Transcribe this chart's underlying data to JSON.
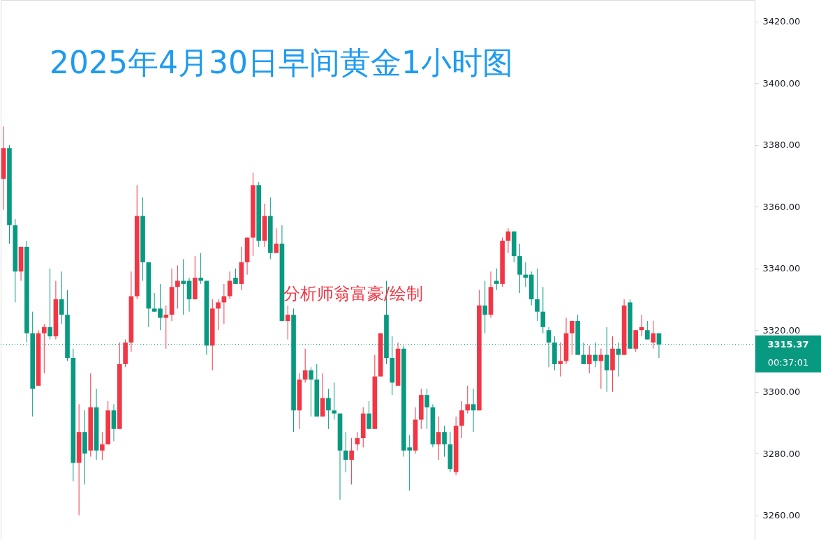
{
  "chart_data": {
    "type": "candlestick",
    "title": "2025年4月30日早间黄金1小时图",
    "categories": [
      null,
      null,
      null,
      null,
      null,
      null,
      null,
      null,
      null,
      null,
      null,
      null,
      null,
      null,
      null,
      null,
      null,
      null,
      null,
      null,
      null,
      null,
      null,
      null,
      null,
      null,
      null,
      null,
      null,
      null,
      null,
      null,
      null,
      null,
      null,
      null,
      null,
      null,
      null,
      null,
      null,
      null,
      null,
      null,
      null,
      null,
      null,
      null,
      null,
      null,
      null,
      null,
      null,
      null,
      null,
      null,
      null,
      null,
      null,
      null,
      null,
      null,
      null,
      null,
      null,
      null,
      null,
      null,
      null,
      null,
      null,
      null,
      null,
      null,
      null,
      null,
      null,
      null,
      null,
      null,
      null,
      null,
      null,
      null,
      null,
      null,
      null,
      null,
      null,
      null,
      null,
      null,
      null,
      null,
      null,
      null,
      null,
      null,
      null,
      null,
      null,
      null,
      null,
      null,
      null,
      null,
      null,
      null,
      null,
      null,
      null,
      null,
      null,
      null,
      null,
      null,
      null,
      null,
      null,
      null,
      null,
      null,
      null,
      null,
      null,
      null,
      null,
      null,
      null,
      null
    ],
    "ohlc": [
      [
        3369,
        3386,
        3359,
        3379
      ],
      [
        3379,
        3380,
        3348,
        3354
      ],
      [
        3354,
        3356,
        3329,
        3339
      ],
      [
        3339,
        3347,
        3336,
        3347
      ],
      [
        3347,
        3349,
        3316,
        3319
      ],
      [
        3319,
        3326,
        3292,
        3301
      ],
      [
        3302,
        3320,
        3302,
        3319
      ],
      [
        3319,
        3322,
        3306,
        3321
      ],
      [
        3321,
        3340,
        3317,
        3318
      ],
      [
        3318,
        3336,
        3317,
        3330
      ],
      [
        3330,
        3339,
        3322,
        3325
      ],
      [
        3325,
        3333,
        3310,
        3311
      ],
      [
        3311,
        3314,
        3271,
        3277
      ],
      [
        3277,
        3296,
        3260,
        3287
      ],
      [
        3287,
        3294,
        3270,
        3280
      ],
      [
        3281,
        3306,
        3279,
        3295
      ],
      [
        3295,
        3301,
        3278,
        3281
      ],
      [
        3281,
        3287,
        3278,
        3283
      ],
      [
        3283,
        3297,
        3283,
        3294
      ],
      [
        3294,
        3296,
        3284,
        3288
      ],
      [
        3288,
        3316,
        3288,
        3309
      ],
      [
        3309,
        3317,
        3308,
        3316
      ],
      [
        3316,
        3339,
        3313,
        3331
      ],
      [
        3331,
        3367,
        3330,
        3357
      ],
      [
        3357,
        3363,
        3336,
        3342
      ],
      [
        3342,
        3342,
        3321,
        3327
      ],
      [
        3327,
        3332,
        3326,
        3326
      ],
      [
        3327,
        3335,
        3320,
        3324
      ],
      [
        3324,
        3328,
        3314,
        3325
      ],
      [
        3325,
        3340,
        3323,
        3334
      ],
      [
        3334,
        3341,
        3327,
        3336
      ],
      [
        3336,
        3343,
        3325,
        3335
      ],
      [
        3336,
        3337,
        3326,
        3330
      ],
      [
        3330,
        3344,
        3330,
        3337
      ],
      [
        3337,
        3345,
        3335,
        3336
      ],
      [
        3336,
        3336,
        3312,
        3315
      ],
      [
        3315,
        3330,
        3307,
        3327
      ],
      [
        3327,
        3330,
        3320,
        3329
      ],
      [
        3329,
        3335,
        3322,
        3331
      ],
      [
        3331,
        3339,
        3330,
        3336
      ],
      [
        3337,
        3340,
        3335,
        3335
      ],
      [
        3335,
        3347,
        3333,
        3342
      ],
      [
        3342,
        3350,
        3338,
        3350
      ],
      [
        3350,
        3371,
        3344,
        3367
      ],
      [
        3367,
        3368,
        3347,
        3349
      ],
      [
        3349,
        3361,
        3347,
        3357
      ],
      [
        3357,
        3363,
        3343,
        3345
      ],
      [
        3345,
        3353,
        3345,
        3348
      ],
      [
        3348,
        3354,
        3323,
        3323
      ],
      [
        3323,
        3328,
        3317,
        3325
      ],
      [
        3325,
        3327,
        3287,
        3294
      ],
      [
        3294,
        3306,
        3288,
        3304
      ],
      [
        3304,
        3314,
        3303,
        3307
      ],
      [
        3307,
        3308,
        3292,
        3304
      ],
      [
        3304,
        3309,
        3292,
        3292
      ],
      [
        3292,
        3306,
        3292,
        3298
      ],
      [
        3298,
        3301,
        3288,
        3294
      ],
      [
        3294,
        3303,
        3291,
        3293
      ],
      [
        3293,
        3293,
        3265,
        3281
      ],
      [
        3281,
        3287,
        3274,
        3278
      ],
      [
        3278,
        3285,
        3270,
        3281
      ],
      [
        3283,
        3287,
        3281,
        3285
      ],
      [
        3285,
        3295,
        3282,
        3293
      ],
      [
        3293,
        3297,
        3288,
        3288
      ],
      [
        3288,
        3312,
        3288,
        3305
      ],
      [
        3305,
        3319,
        3305,
        3319
      ],
      [
        3325,
        3336,
        3309,
        3311
      ],
      [
        3311,
        3318,
        3299,
        3303
      ],
      [
        3302,
        3316,
        3302,
        3314
      ],
      [
        3314,
        3315,
        3279,
        3281
      ],
      [
        3282,
        3286,
        3268,
        3281
      ],
      [
        3281,
        3295,
        3280,
        3291
      ],
      [
        3291,
        3301,
        3288,
        3299
      ],
      [
        3299,
        3301,
        3288,
        3295
      ],
      [
        3295,
        3296,
        3282,
        3283
      ],
      [
        3283,
        3292,
        3278,
        3287
      ],
      [
        3287,
        3289,
        3279,
        3283
      ],
      [
        3283,
        3287,
        3274,
        3275
      ],
      [
        3274,
        3292,
        3273,
        3289
      ],
      [
        3289,
        3297,
        3285,
        3294
      ],
      [
        3294,
        3302,
        3293,
        3296
      ],
      [
        3296,
        3301,
        3287,
        3294
      ],
      [
        3294,
        3333,
        3294,
        3328
      ],
      [
        3328,
        3336,
        3319,
        3325
      ],
      [
        3325,
        3339,
        3324,
        3334
      ],
      [
        3336,
        3340,
        3333,
        3335
      ],
      [
        3335,
        3350,
        3334,
        3349
      ],
      [
        3349,
        3353,
        3345,
        3352
      ],
      [
        3352,
        3352,
        3342,
        3344
      ],
      [
        3344,
        3348,
        3332,
        3338
      ],
      [
        3338,
        3342,
        3334,
        3337
      ],
      [
        3338,
        3339,
        3328,
        3330
      ],
      [
        3330,
        3340,
        3323,
        3326
      ],
      [
        3326,
        3334,
        3319,
        3321
      ],
      [
        3320,
        3321,
        3308,
        3316
      ],
      [
        3316,
        3318,
        3307,
        3309
      ],
      [
        3309,
        3316,
        3305,
        3310
      ],
      [
        3310,
        3324,
        3309,
        3319
      ],
      [
        3319,
        3323,
        3312,
        3323
      ],
      [
        3323,
        3325,
        3312,
        3312
      ],
      [
        3312,
        3316,
        3309,
        3309
      ],
      [
        3309,
        3315,
        3306,
        3312
      ],
      [
        3312,
        3316,
        3308,
        3310
      ],
      [
        3310,
        3314,
        3301,
        3312
      ],
      [
        3312,
        3321,
        3300,
        3307
      ],
      [
        3307,
        3318,
        3300,
        3314
      ],
      [
        3314,
        3316,
        3305,
        3312
      ],
      [
        3312,
        3330,
        3312,
        3328
      ],
      [
        3329,
        3330,
        3314,
        3314
      ],
      [
        3314,
        3320,
        3313,
        3320
      ],
      [
        3320,
        3325,
        3318,
        3321
      ],
      [
        3320,
        3323,
        3317,
        3317
      ],
      [
        3316,
        3323,
        3314,
        3319
      ],
      [
        3319,
        3319,
        3311,
        3315.37
      ],
      null,
      null,
      null,
      null,
      null,
      null,
      null,
      null,
      null,
      null,
      null,
      null,
      null,
      null,
      null,
      null
    ],
    "colors": [
      "#f23645",
      "#089981",
      "#089981",
      "#f23645",
      "#089981",
      "#089981",
      "#f23645",
      "#f23645",
      "#089981",
      "#f23645",
      "#089981",
      "#089981",
      "#089981",
      "#f23645",
      "#089981",
      "#f23645",
      "#089981",
      "#f23645",
      "#f23645",
      "#089981",
      "#f23645",
      "#f23645",
      "#f23645",
      "#f23645",
      "#089981",
      "#089981",
      "#089981",
      "#089981",
      "#f23645",
      "#f23645",
      "#f23645",
      "#089981",
      "#089981",
      "#f23645",
      "#089981",
      "#089981",
      "#f23645",
      "#f23645",
      "#f23645",
      "#f23645",
      "#089981",
      "#f23645",
      "#f23645",
      "#f23645",
      "#089981",
      "#f23645",
      "#089981",
      "#f23645",
      "#089981",
      "#f23645",
      "#089981",
      "#f23645",
      "#f23645",
      "#089981",
      "#089981",
      "#f23645",
      "#089981",
      "#089981",
      "#089981",
      "#089981",
      "#f23645",
      "#f23645",
      "#f23645",
      "#089981",
      "#f23645",
      "#f23645",
      "#089981",
      "#089981",
      "#f23645",
      "#089981",
      "#089981",
      "#f23645",
      "#f23645",
      "#089981",
      "#089981",
      "#f23645",
      "#089981",
      "#089981",
      "#f23645",
      "#f23645",
      "#f23645",
      "#089981",
      "#f23645",
      "#089981",
      "#f23645",
      "#089981",
      "#f23645",
      "#f23645",
      "#089981",
      "#089981",
      "#089981",
      "#089981",
      "#089981",
      "#089981",
      "#089981",
      "#089981",
      "#f23645",
      "#f23645",
      "#f23645",
      "#089981",
      "#089981",
      "#f23645",
      "#089981",
      "#f23645",
      "#089981",
      "#f23645",
      "#089981",
      "#f23645",
      "#089981",
      "#f23645",
      "#f23645",
      "#089981",
      "#f23645",
      "#089981",
      null,
      null,
      null,
      null,
      null,
      null,
      null,
      null,
      null,
      null,
      null,
      null,
      null,
      null,
      null,
      null
    ],
    "ylim": [
      3252,
      3427
    ],
    "yticks": [
      {
        "value": 3260,
        "label": "3260.00"
      },
      {
        "value": 3280,
        "label": "3280.00"
      },
      {
        "value": 3300,
        "label": "3300.00"
      },
      {
        "value": 3320,
        "label": "3320.00"
      },
      {
        "value": 3340,
        "label": "3340.00"
      },
      {
        "value": 3360,
        "label": "3360.00"
      },
      {
        "value": 3380,
        "label": "3380.00"
      },
      {
        "value": 3400,
        "label": "3400.00"
      },
      {
        "value": 3420,
        "label": "3420.00"
      }
    ],
    "ref_lines": [
      {
        "axis": "y",
        "value": 3315.37,
        "label": "3315.37",
        "color": "#089981",
        "line_style": "dotted"
      }
    ],
    "annotations": [
      "分析师翁富豪/绘制",
      "00:37:01"
    ],
    "grid": false,
    "tick_labels": "y"
  }
}
